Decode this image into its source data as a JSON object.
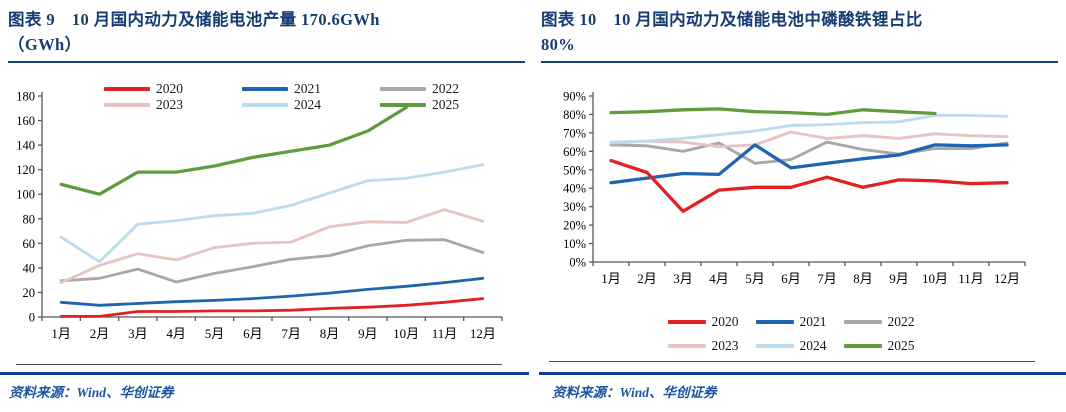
{
  "panels": [
    {
      "title_line1": "图表 9　10 月国内动力及储能电池产量 170.6GWh",
      "title_line2": "（GWh）",
      "source_label": "资料来源：Wind、华创证券"
    },
    {
      "title_line1": "图表 10　10 月国内动力及储能电池中磷酸铁锂占比",
      "title_line2": "80%",
      "source_label": "资料来源：Wind、华创证券"
    }
  ],
  "colors": {
    "title_navy": "#163d73",
    "rule_navy": "#15417e",
    "footer_rule_blue": "#0f3f8d",
    "source_text_blue": "#1d55a0",
    "axis_gray": "#595959"
  },
  "chart_data": [
    {
      "type": "line",
      "title": "图表 9　10 月国内动力及储能电池产量 170.6GWh（GWh）",
      "xlabel": "",
      "ylabel": "GWh",
      "ylim": [
        0,
        180
      ],
      "ytick_step": 20,
      "y_format": "number",
      "grid": false,
      "legend_position": "top-inside",
      "categories": [
        "1月",
        "2月",
        "3月",
        "4月",
        "5月",
        "6月",
        "7月",
        "8月",
        "9月",
        "10月",
        "11月",
        "12月"
      ],
      "series": [
        {
          "name": "2020",
          "color": "#e32022",
          "width": 2.8,
          "z": 6,
          "values": [
            0.5,
            0.5,
            4.5,
            4.5,
            5,
            5,
            5.5,
            7,
            8,
            9.5,
            12,
            15
          ]
        },
        {
          "name": "2021",
          "color": "#1f64ae",
          "width": 2.8,
          "z": 5,
          "values": [
            12,
            9.5,
            11,
            12.5,
            13.5,
            15,
            17,
            19.5,
            22.5,
            25,
            28,
            31.5
          ]
        },
        {
          "name": "2022",
          "color": "#a8a8a8",
          "width": 2.8,
          "z": 1,
          "values": [
            29.5,
            31.5,
            39,
            28.5,
            35.5,
            41,
            47,
            50,
            58,
            62.5,
            63,
            52.5
          ]
        },
        {
          "name": "2023",
          "color": "#e7c3c1",
          "width": 2.8,
          "z": 2,
          "values": [
            28,
            42,
            51.5,
            46.5,
            56.5,
            60,
            61,
            73.5,
            77.5,
            77,
            87.5,
            78
          ]
        },
        {
          "name": "2024",
          "color": "#bcdcee",
          "width": 2.8,
          "z": 3,
          "values": [
            65,
            45,
            75.5,
            78.5,
            82.5,
            84.5,
            91,
            101,
            111,
            113,
            118,
            124
          ]
        },
        {
          "name": "2025",
          "color": "#5f9c3e",
          "width": 3.3,
          "z": 4,
          "values": [
            108,
            100,
            118,
            118,
            123,
            130,
            135,
            140,
            151.5,
            170.6
          ]
        }
      ]
    },
    {
      "type": "line",
      "title": "图表 10　10 月国内动力及储能电池中磷酸铁锂占比 80%",
      "xlabel": "",
      "ylabel": "占比",
      "ylim": [
        0,
        90
      ],
      "ytick_step": 10,
      "y_format": "percent",
      "grid": false,
      "legend_position": "bottom",
      "categories": [
        "1月",
        "2月",
        "3月",
        "4月",
        "5月",
        "6月",
        "7月",
        "8月",
        "9月",
        "10月",
        "11月",
        "12月"
      ],
      "series": [
        {
          "name": "2020",
          "color": "#e32022",
          "width": 3.3,
          "z": 6,
          "values": [
            55,
            48.5,
            27.5,
            39,
            40.5,
            40.5,
            46,
            40.5,
            44.5,
            44,
            42.5,
            43
          ]
        },
        {
          "name": "2021",
          "color": "#1f64ae",
          "width": 3.3,
          "z": 5,
          "values": [
            43,
            45.5,
            48,
            47.5,
            63.5,
            51,
            53.5,
            56,
            58,
            63.5,
            63,
            63.5
          ]
        },
        {
          "name": "2022",
          "color": "#a8a8a8",
          "width": 2.9,
          "z": 1,
          "values": [
            63.5,
            63,
            60,
            64.5,
            53.5,
            55.5,
            65,
            61,
            58.5,
            61.5,
            61.5,
            64.5
          ]
        },
        {
          "name": "2023",
          "color": "#e7c3c1",
          "width": 2.9,
          "z": 2,
          "values": [
            64.5,
            65.5,
            65,
            62.5,
            63.5,
            70.5,
            67,
            68.5,
            67,
            69.5,
            68.5,
            68
          ]
        },
        {
          "name": "2024",
          "color": "#bcdcee",
          "width": 2.9,
          "z": 3,
          "values": [
            65,
            65.5,
            67,
            69,
            71,
            74,
            74.5,
            75.5,
            76,
            79.5,
            79.5,
            79
          ]
        },
        {
          "name": "2025",
          "color": "#5f9c3e",
          "width": 3.3,
          "z": 4,
          "values": [
            81,
            81.5,
            82.5,
            83,
            81.5,
            81,
            80,
            82.5,
            81.5,
            80.5
          ]
        }
      ]
    }
  ]
}
